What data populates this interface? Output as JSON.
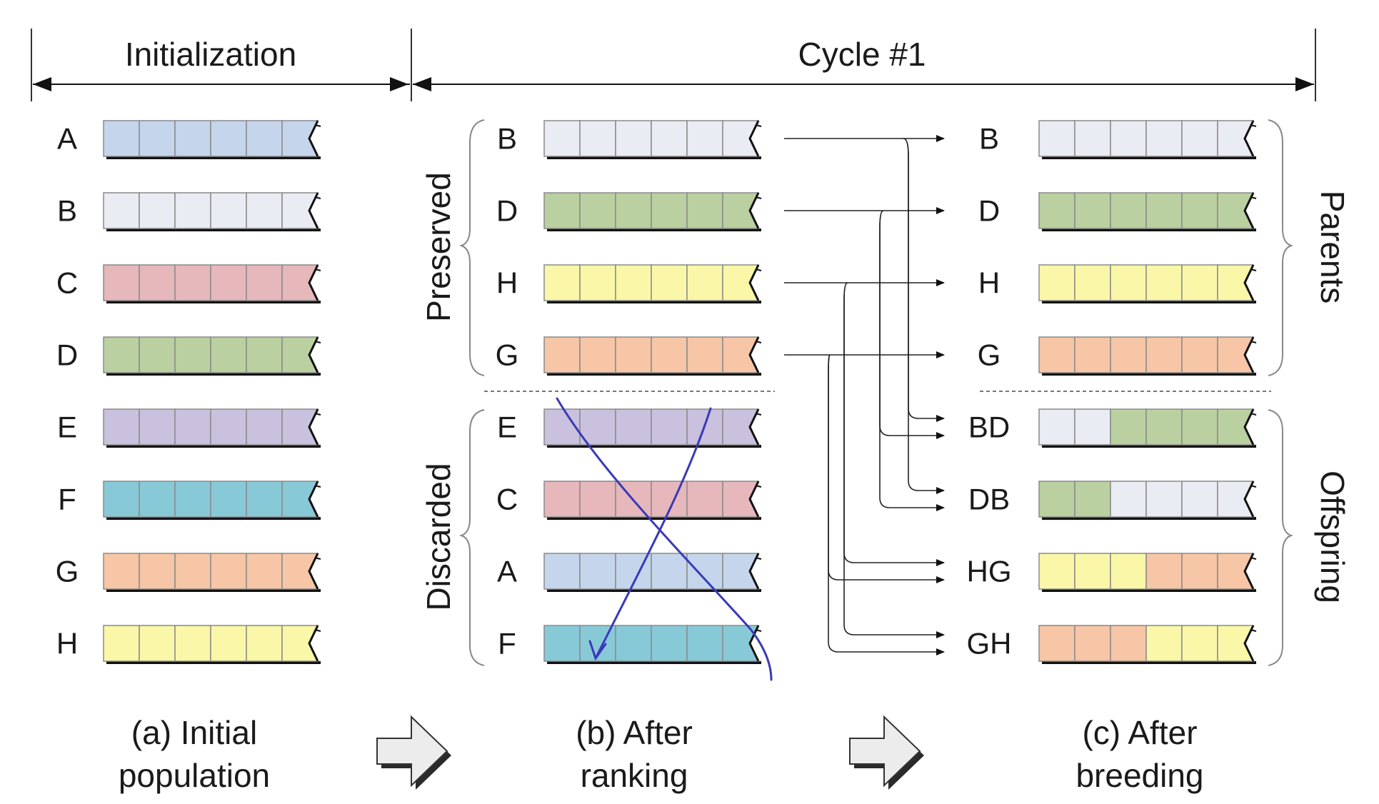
{
  "headers": {
    "initialization": "Initialization",
    "cycle": "Cycle #1"
  },
  "colors": {
    "A": "#c5d6ec",
    "B": "#e9ecf2",
    "C": "#e6b7bb",
    "D": "#bad0a0",
    "E": "#c9c1dd",
    "F": "#88c9d8",
    "G": "#f6c6a6",
    "H": "#faf8a8"
  },
  "panel_a": {
    "caption": [
      "(a) Initial",
      "population"
    ],
    "rows": [
      "A",
      "B",
      "C",
      "D",
      "E",
      "F",
      "G",
      "H"
    ]
  },
  "panel_b": {
    "caption": [
      "(b) After",
      "ranking"
    ],
    "preserved_label": "Preserved",
    "discarded_label": "Discarded",
    "preserved": [
      "B",
      "D",
      "H",
      "G"
    ],
    "discarded": [
      "E",
      "C",
      "A",
      "F"
    ]
  },
  "panel_c": {
    "caption": [
      "(c) After",
      "breeding"
    ],
    "parents_label": "Parents",
    "offspring_label": "Offspring",
    "parents": [
      {
        "name": "B",
        "genes": "BBBBBB"
      },
      {
        "name": "D",
        "genes": "DDDDDD"
      },
      {
        "name": "H",
        "genes": "HHHHHH"
      },
      {
        "name": "G",
        "genes": "GGGGGG"
      }
    ],
    "offspring": [
      {
        "name": "BD",
        "genes": "BBDDDD"
      },
      {
        "name": "DB",
        "genes": "DDBBBB"
      },
      {
        "name": "HG",
        "genes": "HHHGGG"
      },
      {
        "name": "GH",
        "genes": "GGGHHH"
      }
    ]
  },
  "crossover_links": [
    {
      "from": "B",
      "to": [
        "B",
        "BD",
        "DB"
      ]
    },
    {
      "from": "D",
      "to": [
        "D",
        "BD",
        "DB"
      ]
    },
    {
      "from": "H",
      "to": [
        "H",
        "HG",
        "GH"
      ]
    },
    {
      "from": "G",
      "to": [
        "G",
        "HG",
        "GH"
      ]
    }
  ]
}
